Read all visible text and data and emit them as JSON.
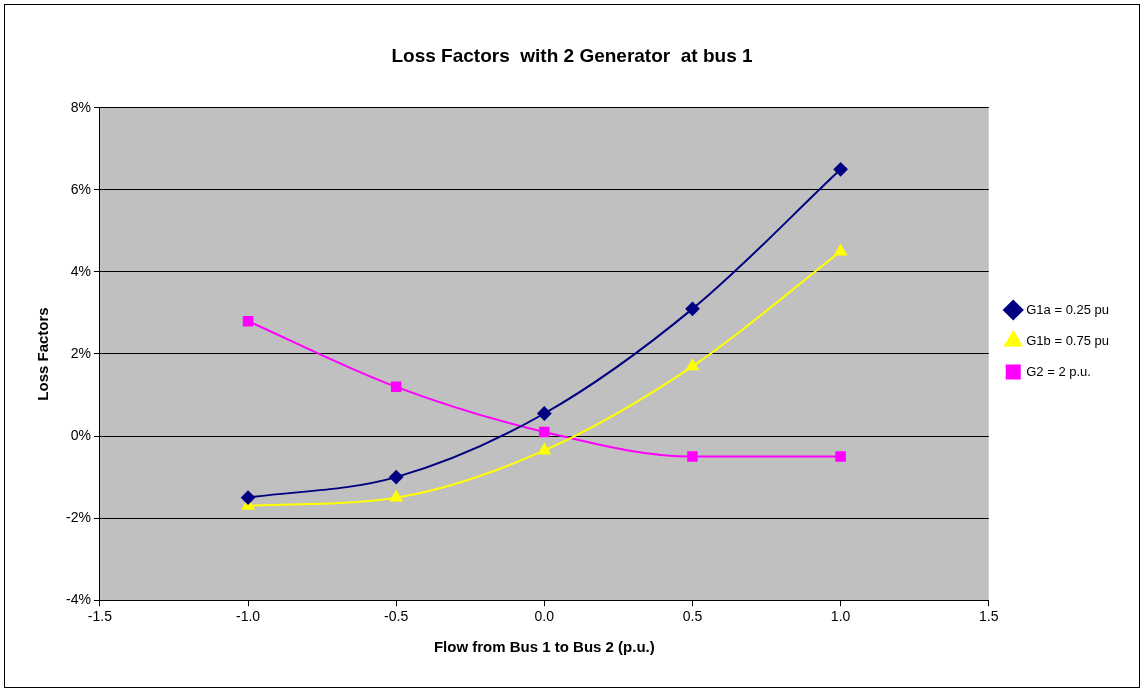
{
  "chart_data": {
    "type": "line",
    "title": "Loss Factors  with 2 Generator  at bus 1",
    "xlabel": "Flow from Bus 1 to Bus 2 (p.u.)",
    "ylabel": "Loss Factors",
    "x": [
      -1.0,
      -0.5,
      0.0,
      0.5,
      1.0
    ],
    "series": [
      {
        "name": "G1a = 0.25 pu",
        "color": "#000080",
        "marker": "diamond",
        "values": [
          -1.5,
          -1.0,
          0.55,
          3.1,
          6.5
        ]
      },
      {
        "name": "G1b = 0.75 pu",
        "color": "#ffff00",
        "marker": "triangle",
        "values": [
          -1.7,
          -1.5,
          -0.35,
          1.7,
          4.5
        ]
      },
      {
        "name": "G2 = 2 p.u.",
        "color": "#ff00ff",
        "marker": "square",
        "values": [
          2.8,
          1.2,
          0.1,
          -0.5,
          -0.5
        ]
      }
    ],
    "xlim": [
      -1.5,
      1.5
    ],
    "xticks": [
      -1.5,
      {
        "value": -1,
        "label": "-1.0"
      },
      -0.5,
      {
        "value": 0,
        "label": "0.0"
      },
      0.5,
      {
        "value": 1,
        "label": "1.0"
      },
      1.5
    ],
    "ylim": [
      -4,
      8
    ],
    "yticks": [
      {
        "value": -4,
        "label": "-4%"
      },
      {
        "value": -2,
        "label": "-2%"
      },
      {
        "value": 0,
        "label": "0%"
      },
      {
        "value": 2,
        "label": "2%"
      },
      {
        "value": 4,
        "label": "4%"
      },
      {
        "value": 6,
        "label": "6%"
      },
      {
        "value": 8,
        "label": "8%"
      }
    ],
    "grid": "y",
    "legend": "right",
    "line_style": "solid"
  }
}
